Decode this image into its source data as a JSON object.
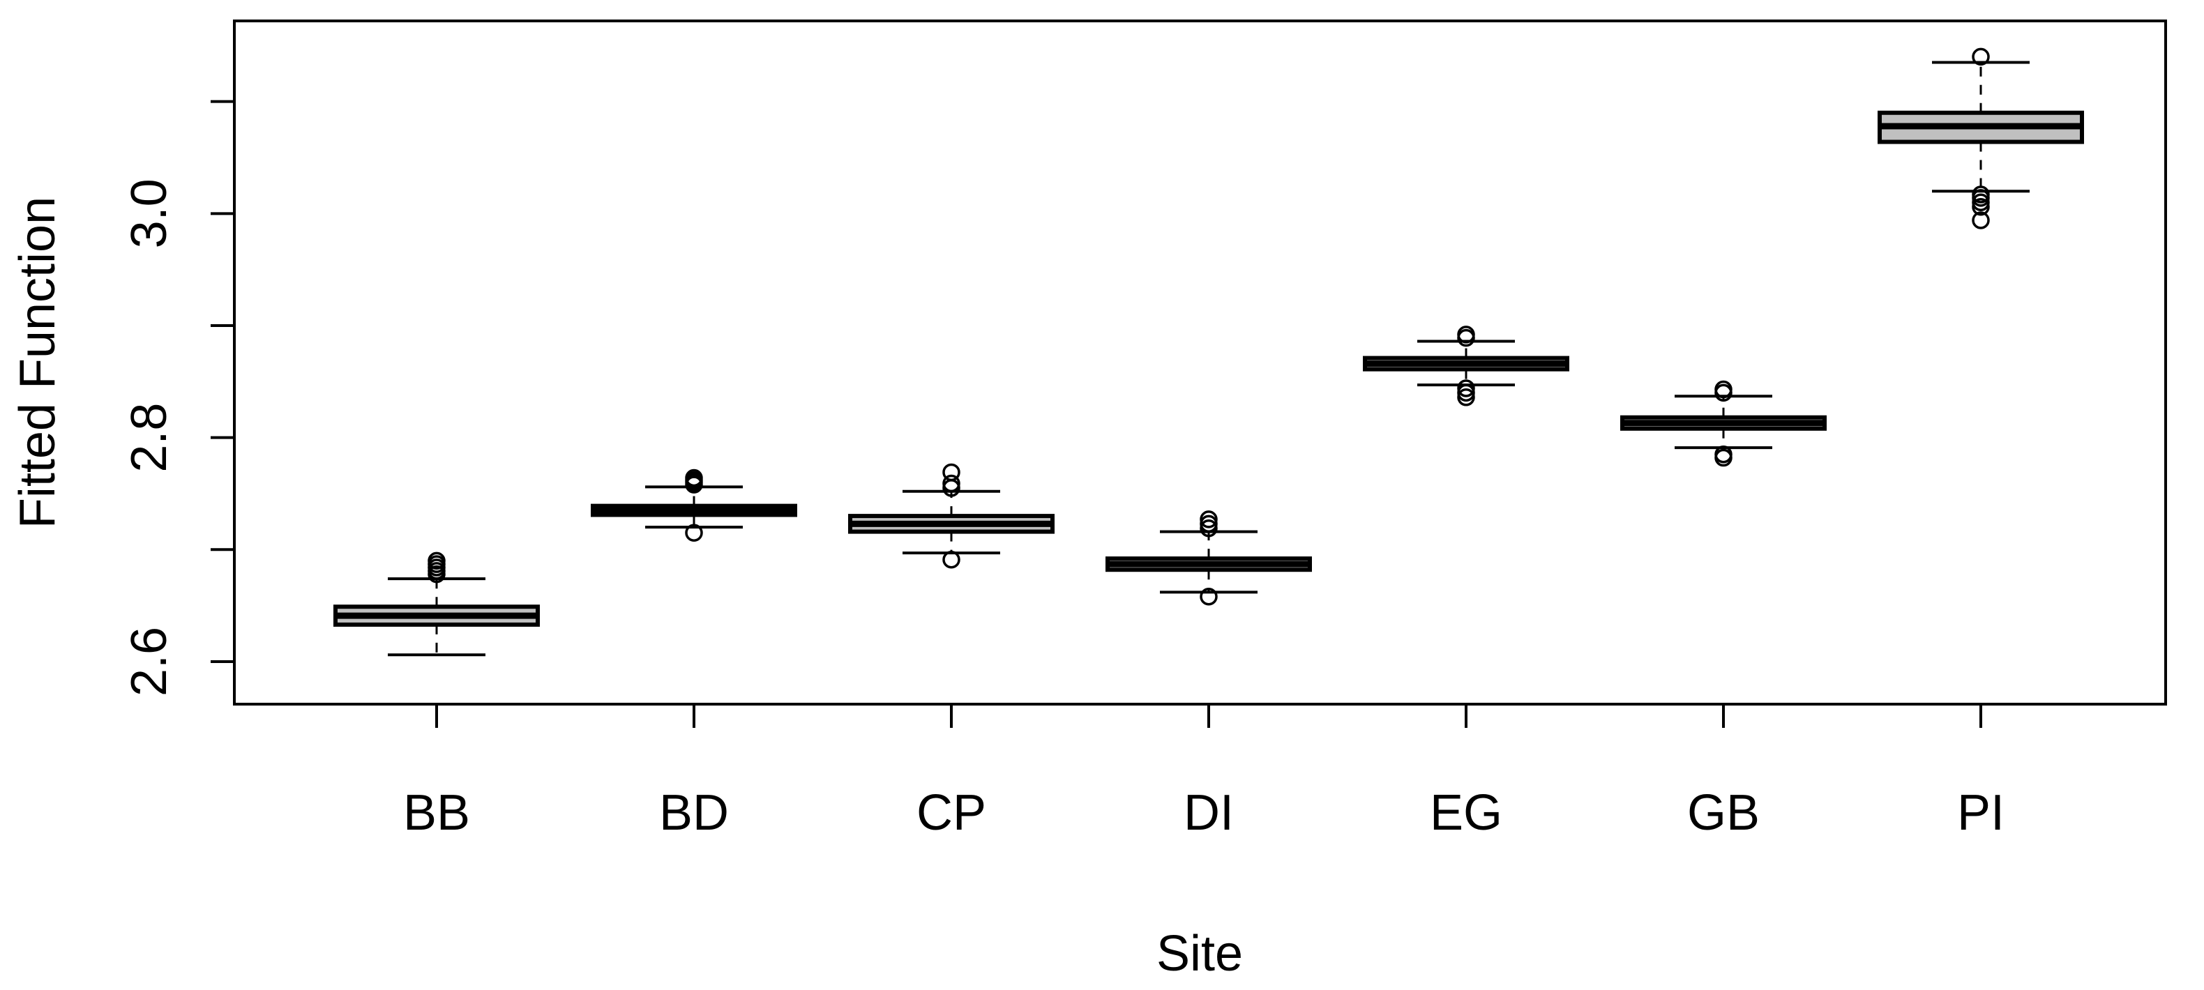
{
  "chart_data": {
    "type": "boxplot",
    "xlabel": "Site",
    "ylabel": "Fitted Function",
    "ylim": [
      2.562,
      3.172
    ],
    "yticks": [
      2.6,
      2.8,
      3.0
    ],
    "yticks_minor": [
      2.7,
      2.9,
      3.1
    ],
    "ytick_labels": [
      "2.6",
      "2.8",
      "3.0"
    ],
    "box_fill": "#c0c0c0",
    "boxes": [
      {
        "category": "BB",
        "whisker_low": 2.606,
        "q1": 2.633,
        "median": 2.641,
        "q3": 2.649,
        "whisker_high": 2.674,
        "outliers_low": [],
        "outliers_high": [
          2.678,
          2.681,
          2.684,
          2.687,
          2.69
        ]
      },
      {
        "category": "BD",
        "whisker_low": 2.72,
        "q1": 2.731,
        "median": 2.735,
        "q3": 2.739,
        "whisker_high": 2.756,
        "outliers_low": [
          2.715
        ],
        "outliers_high": [
          2.758,
          2.76,
          2.762,
          2.764
        ]
      },
      {
        "category": "CP",
        "whisker_low": 2.697,
        "q1": 2.716,
        "median": 2.723,
        "q3": 2.73,
        "whisker_high": 2.752,
        "outliers_low": [
          2.691
        ],
        "outliers_high": [
          2.755,
          2.759,
          2.769
        ]
      },
      {
        "category": "DI",
        "whisker_low": 2.662,
        "q1": 2.682,
        "median": 2.687,
        "q3": 2.692,
        "whisker_high": 2.716,
        "outliers_low": [
          2.658
        ],
        "outliers_high": [
          2.719,
          2.723,
          2.727
        ]
      },
      {
        "category": "EG",
        "whisker_low": 2.847,
        "q1": 2.861,
        "median": 2.866,
        "q3": 2.871,
        "whisker_high": 2.886,
        "outliers_low": [
          2.836,
          2.84,
          2.844
        ],
        "outliers_high": [
          2.889,
          2.892
        ]
      },
      {
        "category": "GB",
        "whisker_low": 2.791,
        "q1": 2.808,
        "median": 2.813,
        "q3": 2.818,
        "whisker_high": 2.837,
        "outliers_low": [
          2.782,
          2.785
        ],
        "outliers_high": [
          2.84,
          2.843
        ]
      },
      {
        "category": "PI",
        "whisker_low": 3.02,
        "q1": 3.064,
        "median": 3.078,
        "q3": 3.09,
        "whisker_high": 3.135,
        "outliers_low": [
          2.994,
          3.006,
          3.01,
          3.014,
          3.017
        ],
        "outliers_high": [
          3.14
        ]
      }
    ]
  }
}
